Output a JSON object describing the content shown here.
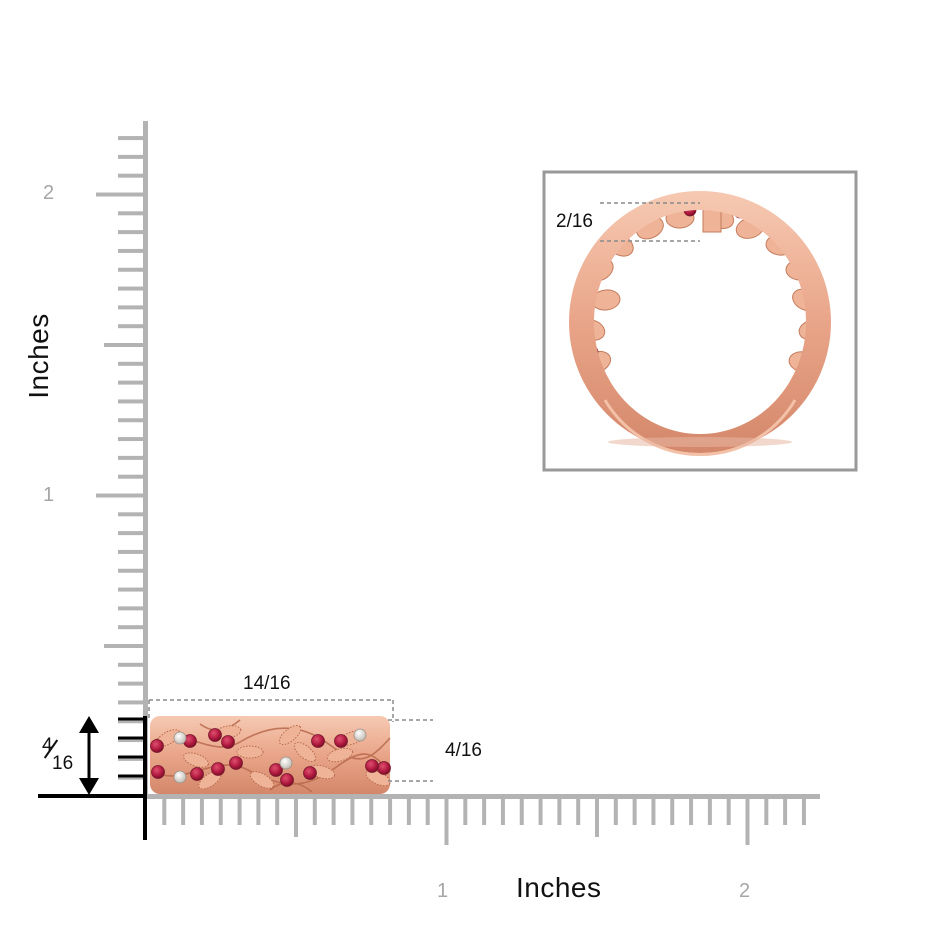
{
  "y_axis": {
    "title": "Inches",
    "tick_labels": [
      "2",
      "1"
    ]
  },
  "x_axis": {
    "title": "Inches",
    "tick_labels": [
      "1",
      "2"
    ]
  },
  "measurements": {
    "side_view_width": "14/16",
    "side_view_height": "4/16",
    "ruler_height_numerator": "4",
    "ruler_height_denominator": "16",
    "front_view_thickness": "2/16"
  },
  "colors": {
    "ruler": "#b3b3b3",
    "baseline": "#000000",
    "rose_gold": "#e9a589",
    "ruby": "#b0193f",
    "diamond": "#e6e2dc",
    "inset_frame": "#999999",
    "dimension_line": "#8a8a8a"
  }
}
